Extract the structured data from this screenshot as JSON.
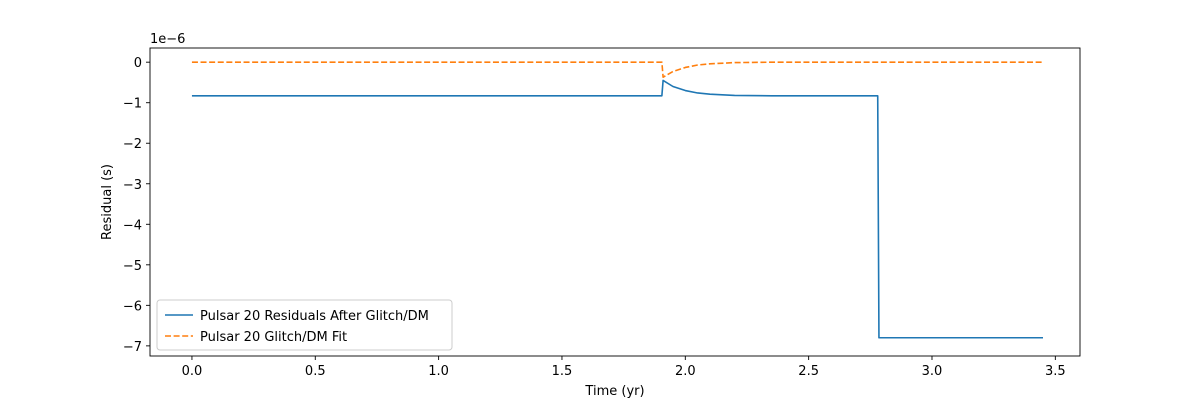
{
  "chart_data": {
    "type": "line",
    "title": "",
    "xlabel": "Time (yr)",
    "ylabel": "Residual (s)",
    "y_offset_label": "1e−6",
    "xlim": [
      -0.17,
      3.6
    ],
    "ylim": [
      -7.25,
      0.35
    ],
    "xticks": [
      0.0,
      0.5,
      1.0,
      1.5,
      2.0,
      2.5,
      3.0,
      3.5
    ],
    "xtick_labels": [
      "0.0",
      "0.5",
      "1.0",
      "1.5",
      "2.0",
      "2.5",
      "3.0",
      "3.5"
    ],
    "yticks": [
      0,
      -1,
      -2,
      -3,
      -4,
      -5,
      -6,
      -7
    ],
    "ytick_labels": [
      "0",
      "−1",
      "−2",
      "−3",
      "−4",
      "−5",
      "−6",
      "−7"
    ],
    "grid": false,
    "legend_position": "lower-left",
    "series": [
      {
        "name": "Pulsar 20 Residuals After Glitch/DM",
        "color": "#1f77b4",
        "style": "solid",
        "x": [
          0.0,
          1.905,
          1.91,
          1.95,
          2.0,
          2.05,
          2.1,
          2.2,
          2.35,
          2.5,
          2.78,
          2.785,
          3.45
        ],
        "y": [
          -0.83,
          -0.83,
          -0.45,
          -0.6,
          -0.7,
          -0.76,
          -0.79,
          -0.82,
          -0.83,
          -0.83,
          -0.83,
          -6.8,
          -6.8
        ]
      },
      {
        "name": "Pulsar 20 Glitch/DM Fit",
        "color": "#ff7f0e",
        "style": "dashed",
        "x": [
          0.0,
          1.905,
          1.91,
          1.95,
          2.0,
          2.05,
          2.1,
          2.2,
          2.35,
          2.5,
          3.45
        ],
        "y": [
          0.0,
          0.0,
          -0.37,
          -0.23,
          -0.13,
          -0.07,
          -0.04,
          -0.01,
          0.0,
          0.0,
          0.0
        ]
      }
    ]
  }
}
